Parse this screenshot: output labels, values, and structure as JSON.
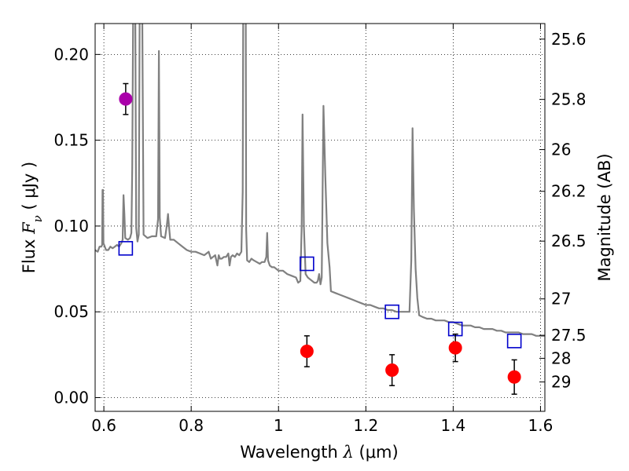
{
  "chart_data": {
    "type": "scatter",
    "xlabel": "Wavelength  λ (μm)",
    "ylabel": "Flux  F_ν  ( μJy )",
    "ylabel_parts": {
      "prefix": "Flux  ",
      "symbol": "F",
      "subscript": "ν",
      "suffix": "  ( μJy )"
    },
    "xlabel_parts": {
      "prefix": "Wavelength  ",
      "symbol": "λ",
      "suffix": " (μm)"
    },
    "y2label": "Magnitude (AB)",
    "xlim": [
      0.58,
      1.61
    ],
    "ylim": [
      -0.008,
      0.218
    ],
    "grid": true,
    "x_ticks": [
      {
        "value": 0.6,
        "label": "0.6"
      },
      {
        "value": 0.8,
        "label": "0.8"
      },
      {
        "value": 1.0,
        "label": "1"
      },
      {
        "value": 1.2,
        "label": "1.2"
      },
      {
        "value": 1.4,
        "label": "1.4"
      },
      {
        "value": 1.6,
        "label": "1.6"
      }
    ],
    "y_ticks": [
      {
        "value": 0.0,
        "label": "0.00"
      },
      {
        "value": 0.05,
        "label": "0.05"
      },
      {
        "value": 0.1,
        "label": "0.10"
      },
      {
        "value": 0.15,
        "label": "0.15"
      },
      {
        "value": 0.2,
        "label": "0.20"
      }
    ],
    "y2_ticks": [
      {
        "value": 25.6,
        "label": "25.6"
      },
      {
        "value": 25.8,
        "label": "25.8"
      },
      {
        "value": 26.0,
        "label": "26"
      },
      {
        "value": 26.2,
        "label": "26.2"
      },
      {
        "value": 26.5,
        "label": "26.5"
      },
      {
        "value": 27.0,
        "label": "27"
      },
      {
        "value": 27.5,
        "label": "27.5"
      },
      {
        "value": 28.0,
        "label": "28"
      },
      {
        "value": 29.0,
        "label": "29"
      }
    ],
    "series": [
      {
        "kind": "line",
        "color": "#808080",
        "points": [
          [
            0.58,
            0.086
          ],
          [
            0.586,
            0.085
          ],
          [
            0.59,
            0.088
          ],
          [
            0.594,
            0.088
          ],
          [
            0.596,
            0.089
          ],
          [
            0.597,
            0.121
          ],
          [
            0.598,
            0.121
          ],
          [
            0.599,
            0.09
          ],
          [
            0.605,
            0.086
          ],
          [
            0.61,
            0.086
          ],
          [
            0.615,
            0.088
          ],
          [
            0.62,
            0.087
          ],
          [
            0.625,
            0.088
          ],
          [
            0.63,
            0.089
          ],
          [
            0.635,
            0.088
          ],
          [
            0.64,
            0.09
          ],
          [
            0.643,
            0.092
          ],
          [
            0.645,
            0.118
          ],
          [
            0.647,
            0.107
          ],
          [
            0.649,
            0.093
          ],
          [
            0.655,
            0.092
          ],
          [
            0.66,
            0.093
          ],
          [
            0.663,
            0.096
          ],
          [
            0.665,
            0.134
          ],
          [
            0.667,
            0.22
          ],
          [
            0.672,
            0.22
          ],
          [
            0.674,
            0.099
          ],
          [
            0.677,
            0.091
          ],
          [
            0.68,
            0.095
          ],
          [
            0.682,
            0.22
          ],
          [
            0.688,
            0.22
          ],
          [
            0.691,
            0.095
          ],
          [
            0.7,
            0.093
          ],
          [
            0.71,
            0.094
          ],
          [
            0.72,
            0.094
          ],
          [
            0.724,
            0.104
          ],
          [
            0.726,
            0.202
          ],
          [
            0.728,
            0.105
          ],
          [
            0.731,
            0.094
          ],
          [
            0.74,
            0.093
          ],
          [
            0.744,
            0.1
          ],
          [
            0.747,
            0.107
          ],
          [
            0.749,
            0.1
          ],
          [
            0.752,
            0.092
          ],
          [
            0.76,
            0.092
          ],
          [
            0.77,
            0.09
          ],
          [
            0.78,
            0.088
          ],
          [
            0.79,
            0.086
          ],
          [
            0.8,
            0.085
          ],
          [
            0.81,
            0.085
          ],
          [
            0.82,
            0.084
          ],
          [
            0.83,
            0.083
          ],
          [
            0.84,
            0.085
          ],
          [
            0.845,
            0.081
          ],
          [
            0.85,
            0.082
          ],
          [
            0.855,
            0.083
          ],
          [
            0.86,
            0.077
          ],
          [
            0.863,
            0.083
          ],
          [
            0.866,
            0.081
          ],
          [
            0.87,
            0.081
          ],
          [
            0.875,
            0.082
          ],
          [
            0.88,
            0.082
          ],
          [
            0.885,
            0.084
          ],
          [
            0.888,
            0.077
          ],
          [
            0.891,
            0.082
          ],
          [
            0.895,
            0.083
          ],
          [
            0.9,
            0.082
          ],
          [
            0.905,
            0.084
          ],
          [
            0.91,
            0.083
          ],
          [
            0.915,
            0.085
          ],
          [
            0.918,
            0.12
          ],
          [
            0.919,
            0.22
          ],
          [
            0.925,
            0.22
          ],
          [
            0.926,
            0.098
          ],
          [
            0.928,
            0.08
          ],
          [
            0.933,
            0.079
          ],
          [
            0.938,
            0.081
          ],
          [
            0.943,
            0.08
          ],
          [
            0.95,
            0.079
          ],
          [
            0.957,
            0.078
          ],
          [
            0.962,
            0.079
          ],
          [
            0.968,
            0.079
          ],
          [
            0.972,
            0.082
          ],
          [
            0.974,
            0.096
          ],
          [
            0.976,
            0.08
          ],
          [
            0.98,
            0.077
          ],
          [
            0.985,
            0.076
          ],
          [
            0.99,
            0.076
          ],
          [
            1.0,
            0.074
          ],
          [
            1.01,
            0.074
          ],
          [
            1.02,
            0.072
          ],
          [
            1.03,
            0.071
          ],
          [
            1.04,
            0.07
          ],
          [
            1.045,
            0.067
          ],
          [
            1.05,
            0.068
          ],
          [
            1.053,
            0.1
          ],
          [
            1.055,
            0.165
          ],
          [
            1.058,
            0.1
          ],
          [
            1.062,
            0.072
          ],
          [
            1.067,
            0.07
          ],
          [
            1.072,
            0.069
          ],
          [
            1.077,
            0.068
          ],
          [
            1.082,
            0.067
          ],
          [
            1.087,
            0.067
          ],
          [
            1.09,
            0.068
          ],
          [
            1.093,
            0.072
          ],
          [
            1.096,
            0.066
          ],
          [
            1.099,
            0.07
          ],
          [
            1.103,
            0.17
          ],
          [
            1.107,
            0.13
          ],
          [
            1.112,
            0.09
          ],
          [
            1.117,
            0.076
          ],
          [
            1.12,
            0.062
          ],
          [
            1.13,
            0.061
          ],
          [
            1.14,
            0.06
          ],
          [
            1.15,
            0.059
          ],
          [
            1.16,
            0.058
          ],
          [
            1.17,
            0.057
          ],
          [
            1.18,
            0.056
          ],
          [
            1.19,
            0.055
          ],
          [
            1.2,
            0.054
          ],
          [
            1.21,
            0.054
          ],
          [
            1.22,
            0.053
          ],
          [
            1.23,
            0.052
          ],
          [
            1.24,
            0.052
          ],
          [
            1.25,
            0.051
          ],
          [
            1.26,
            0.051
          ],
          [
            1.27,
            0.05
          ],
          [
            1.28,
            0.05
          ],
          [
            1.29,
            0.05
          ],
          [
            1.3,
            0.05
          ],
          [
            1.304,
            0.08
          ],
          [
            1.307,
            0.157
          ],
          [
            1.31,
            0.11
          ],
          [
            1.314,
            0.075
          ],
          [
            1.318,
            0.058
          ],
          [
            1.322,
            0.048
          ],
          [
            1.33,
            0.047
          ],
          [
            1.34,
            0.046
          ],
          [
            1.35,
            0.046
          ],
          [
            1.36,
            0.045
          ],
          [
            1.37,
            0.045
          ],
          [
            1.38,
            0.045
          ],
          [
            1.39,
            0.044
          ],
          [
            1.4,
            0.044
          ],
          [
            1.41,
            0.043
          ],
          [
            1.42,
            0.042
          ],
          [
            1.43,
            0.042
          ],
          [
            1.44,
            0.042
          ],
          [
            1.45,
            0.041
          ],
          [
            1.46,
            0.041
          ],
          [
            1.47,
            0.04
          ],
          [
            1.48,
            0.04
          ],
          [
            1.49,
            0.04
          ],
          [
            1.5,
            0.039
          ],
          [
            1.51,
            0.039
          ],
          [
            1.52,
            0.038
          ],
          [
            1.53,
            0.038
          ],
          [
            1.54,
            0.038
          ],
          [
            1.55,
            0.038
          ],
          [
            1.56,
            0.037
          ],
          [
            1.57,
            0.037
          ],
          [
            1.58,
            0.037
          ],
          [
            1.59,
            0.036
          ],
          [
            1.6,
            0.036
          ],
          [
            1.61,
            0.036
          ]
        ]
      },
      {
        "kind": "open-square",
        "color": "#0000cc",
        "points": [
          {
            "x": 0.65,
            "y": 0.087
          },
          {
            "x": 1.065,
            "y": 0.078
          },
          {
            "x": 1.26,
            "y": 0.05
          },
          {
            "x": 1.405,
            "y": 0.04
          },
          {
            "x": 1.54,
            "y": 0.033
          }
        ]
      },
      {
        "kind": "filled-circle-errorbar",
        "color": "#ff0000",
        "points": [
          {
            "x": 1.065,
            "y": 0.027,
            "err": 0.009
          },
          {
            "x": 1.26,
            "y": 0.016,
            "err": 0.009
          },
          {
            "x": 1.405,
            "y": 0.029,
            "err": 0.008
          },
          {
            "x": 1.54,
            "y": 0.012,
            "err": 0.01
          }
        ]
      },
      {
        "kind": "filled-circle-errorbar",
        "color": "#aa00aa",
        "points": [
          {
            "x": 0.65,
            "y": 0.174,
            "err": 0.009
          }
        ]
      }
    ]
  }
}
